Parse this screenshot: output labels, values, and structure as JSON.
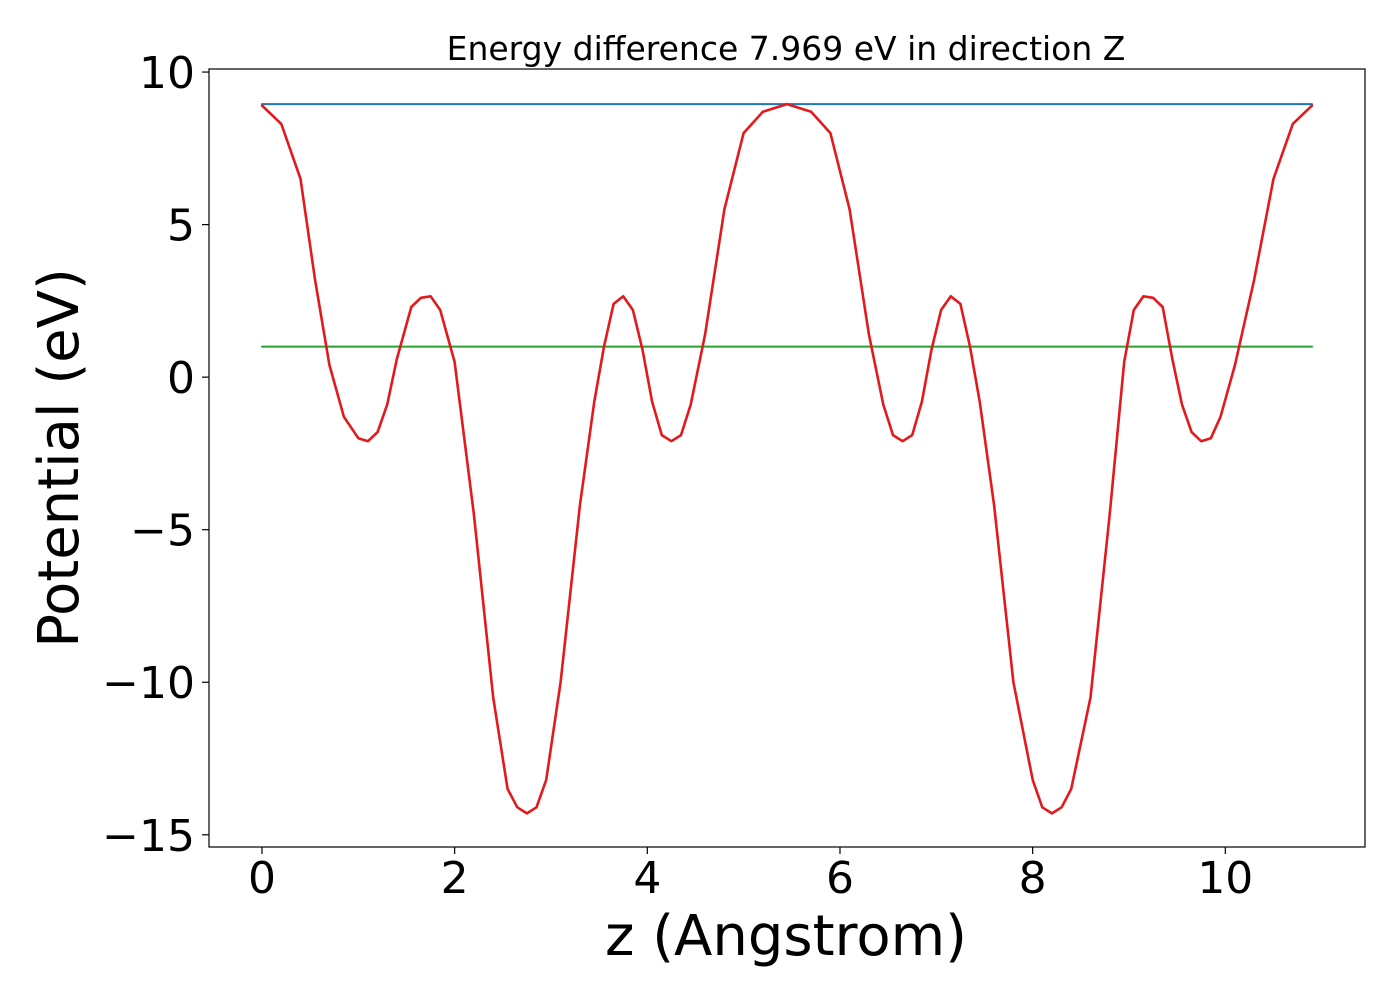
{
  "chart_data": {
    "type": "line",
    "title": "Energy difference 7.969 eV in direction Z",
    "xlabel": "z (Angstrom)",
    "ylabel": "Potential (eV)",
    "xlim": [
      -0.55,
      11.45
    ],
    "ylim": [
      -15.4,
      10.1
    ],
    "grid": false,
    "legend": "none",
    "xticks": [
      0,
      2,
      4,
      6,
      8,
      10
    ],
    "xtick_labels": [
      "0",
      "2",
      "4",
      "6",
      "8",
      "10"
    ],
    "yticks": [
      -15,
      -10,
      -5,
      0,
      5,
      10
    ],
    "ytick_labels": [
      "−15",
      "−10",
      "−5",
      "0",
      "5",
      "10"
    ],
    "series": [
      {
        "color": "#1f77b4",
        "x": [
          0,
          10.9
        ],
        "y": [
          8.95,
          8.95
        ]
      },
      {
        "color": "#2ca02c",
        "x": [
          0,
          10.9
        ],
        "y": [
          1.0,
          1.0
        ]
      },
      {
        "color": "#e31a1c",
        "x": [
          0.0,
          0.2,
          0.4,
          0.55,
          0.7,
          0.85,
          1.0,
          1.1,
          1.2,
          1.3,
          1.4,
          1.55,
          1.65,
          1.75,
          1.85,
          2.0,
          2.2,
          2.4,
          2.55,
          2.65,
          2.75,
          2.85,
          2.95,
          3.1,
          3.3,
          3.45,
          3.55,
          3.65,
          3.75,
          3.85,
          3.95,
          4.05,
          4.15,
          4.25,
          4.35,
          4.45,
          4.6,
          4.8,
          5.0,
          5.2,
          5.45,
          5.7,
          5.9,
          6.1,
          6.3,
          6.45,
          6.55,
          6.65,
          6.75,
          6.85,
          6.95,
          7.05,
          7.15,
          7.25,
          7.35,
          7.45,
          7.6,
          7.8,
          8.0,
          8.1,
          8.2,
          8.3,
          8.4,
          8.6,
          8.8,
          8.95,
          9.05,
          9.15,
          9.25,
          9.35,
          9.45,
          9.55,
          9.65,
          9.75,
          9.85,
          9.95,
          10.1,
          10.3,
          10.5,
          10.7,
          10.9
        ],
        "y": [
          8.9,
          8.3,
          6.5,
          3.2,
          0.4,
          -1.3,
          -2.0,
          -2.1,
          -1.8,
          -0.9,
          0.6,
          2.3,
          2.6,
          2.65,
          2.2,
          0.5,
          -4.5,
          -10.5,
          -13.5,
          -14.1,
          -14.3,
          -14.1,
          -13.2,
          -10.0,
          -4.2,
          -0.8,
          1.0,
          2.4,
          2.65,
          2.2,
          0.9,
          -0.8,
          -1.9,
          -2.1,
          -1.9,
          -0.9,
          1.4,
          5.5,
          8.0,
          8.7,
          8.95,
          8.7,
          8.0,
          5.5,
          1.4,
          -0.9,
          -1.9,
          -2.1,
          -1.9,
          -0.8,
          0.9,
          2.2,
          2.65,
          2.4,
          1.0,
          -0.8,
          -4.2,
          -10.0,
          -13.2,
          -14.1,
          -14.3,
          -14.1,
          -13.5,
          -10.5,
          -4.5,
          0.5,
          2.2,
          2.65,
          2.6,
          2.3,
          0.6,
          -0.9,
          -1.8,
          -2.1,
          -2.0,
          -1.3,
          0.4,
          3.2,
          6.5,
          8.3,
          8.9
        ]
      }
    ]
  }
}
